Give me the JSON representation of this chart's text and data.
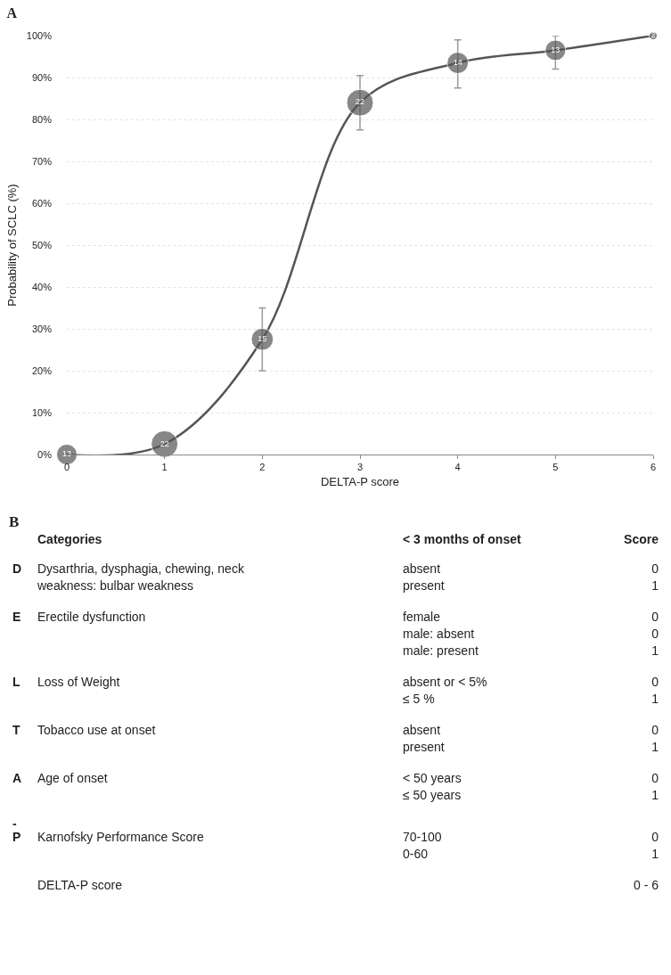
{
  "chart_data": [
    {
      "type": "bubble",
      "title": "A",
      "xlabel": "DELTA-P score",
      "ylabel": "Probability of SCLC (%)",
      "x": [
        0,
        1,
        2,
        3,
        4,
        5,
        6
      ],
      "series": [
        {
          "color": "#555555",
          "values": [
            0,
            2.5,
            27.5,
            84,
            93.5,
            96.5,
            100
          ],
          "sizes": [
            13,
            22,
            15,
            22,
            14,
            13,
            2
          ],
          "value_labels": [
            "13",
            "22",
            "15",
            "22",
            "14",
            "13",
            "2"
          ],
          "errors": [
            null,
            null,
            [
              20,
              35
            ],
            [
              77.5,
              90.5
            ],
            [
              87.5,
              99
            ],
            [
              92,
              100
            ],
            null
          ]
        }
      ],
      "xlim": [
        0,
        6
      ],
      "xticks": [
        0,
        1,
        2,
        3,
        4,
        5,
        6
      ],
      "ylim": [
        0,
        100
      ],
      "yticks": [
        {
          "value": 0,
          "label": "0%"
        },
        {
          "value": 10,
          "label": "10%"
        },
        {
          "value": 20,
          "label": "20%"
        },
        {
          "value": 30,
          "label": "30%"
        },
        {
          "value": 40,
          "label": "40%"
        },
        {
          "value": 50,
          "label": "50%"
        },
        {
          "value": 60,
          "label": "60%"
        },
        {
          "value": 70,
          "label": "70%"
        },
        {
          "value": 80,
          "label": "80%"
        },
        {
          "value": 90,
          "label": "90%"
        },
        {
          "value": 100,
          "label": "100%"
        }
      ],
      "grid": "y",
      "legend": false,
      "marker": "circle",
      "line_style": "solid"
    },
    {
      "type": "other",
      "title": "B",
      "annotations": [
        "\tCategories\t< 3 months of onset\tScore",
        "D\tDysarthria, dysphagia, chewing, neck\nweakness: bulbar weakness\tabsent\npresent\t0\n1",
        "E\tErectile dysfunction\tfemale\nmale: absent\nmale: present\t0\n0\n1",
        "L\tLoss of Weight\tabsent or < 5%\n≤ 5 %\t0\n1",
        "T\tTobacco use at onset\tabsent\npresent\t0\n1",
        "A\tAge of onset\t< 50 years\n≤ 50 years\t0\n1",
        "-",
        "P\tKarnofsky Performance Score\t70-100\n0-60\t0\n1",
        "\tDELTA-P score\t\t0 - 6"
      ]
    }
  ]
}
